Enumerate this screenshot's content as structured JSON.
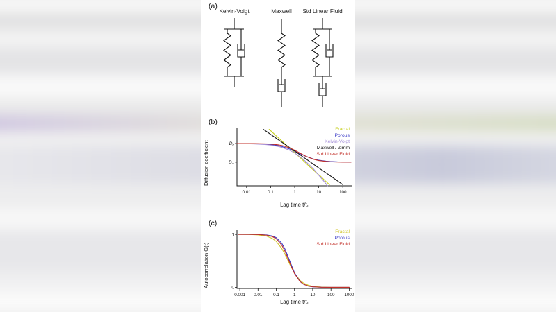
{
  "figure": {
    "panel_a": {
      "label": "(a)",
      "models": [
        "Kelvin-Voigt",
        "Maxwell",
        "Std Linear Fluid"
      ]
    },
    "panel_b": {
      "label": "(b)",
      "xlabel": "Lag time t/t₀",
      "ylabel": "Diffusion coefficient"
    },
    "panel_c": {
      "label": "(c)",
      "xlabel": "Lag time t/t₀",
      "ylabel": "Autocorrelation G(t)"
    }
  },
  "chart_data": [
    {
      "id": "chart-b",
      "type": "line",
      "title": "",
      "xlabel": "Lag time t/t₀",
      "ylabel": "Diffusion coefficient",
      "xscale": "log",
      "yscale": "log",
      "xlim": [
        0.004,
        250
      ],
      "ylim": [
        0.065,
        2.8
      ],
      "grid": false,
      "legend_position": "top-right",
      "xticks": [
        0.01,
        0.1,
        1,
        10,
        100
      ],
      "xtick_labels": [
        "0.01",
        "0.1",
        "1",
        "10",
        "100"
      ],
      "yticks": [
        {
          "value": 1.0,
          "label": "D",
          "sub": "0"
        },
        {
          "value": 0.3,
          "label": "D",
          "sub": "∞"
        }
      ],
      "series": [
        {
          "name": "Fractal",
          "color": "#c6cf1f",
          "points": [
            [
              0.087,
              2.5
            ],
            [
              0.12,
              2.05
            ],
            [
              0.15,
              1.78
            ],
            [
              0.2,
              1.49
            ],
            [
              0.3,
              1.16
            ],
            [
              0.45,
              0.9
            ],
            [
              0.6,
              0.76
            ],
            [
              1,
              0.55
            ],
            [
              1.5,
              0.43
            ],
            [
              2,
              0.36
            ],
            [
              4,
              0.23
            ],
            [
              6,
              0.18
            ],
            [
              8,
              0.15
            ],
            [
              12,
              0.12
            ],
            [
              16,
              0.099
            ],
            [
              22,
              0.081
            ],
            [
              28,
              0.07
            ]
          ]
        },
        {
          "name": "Porous",
          "color": "#3b3bc8",
          "points": [
            [
              0.004,
              0.998
            ],
            [
              0.01,
              0.994
            ],
            [
              0.02,
              0.988
            ],
            [
              0.06,
              0.962
            ],
            [
              0.1,
              0.935
            ],
            [
              0.2,
              0.875
            ],
            [
              0.3,
              0.822
            ],
            [
              0.6,
              0.705
            ],
            [
              1,
              0.607
            ],
            [
              2,
              0.487
            ],
            [
              3,
              0.433
            ],
            [
              6,
              0.369
            ],
            [
              10,
              0.341
            ],
            [
              20,
              0.32
            ],
            [
              30,
              0.313
            ],
            [
              60,
              0.306
            ],
            [
              100,
              0.304
            ],
            [
              220,
              0.302
            ]
          ]
        },
        {
          "name": "Kelvin-Voigt",
          "color": "#a58fd8",
          "points": [
            [
              0.004,
              0.995
            ],
            [
              0.01,
              0.987
            ],
            [
              0.02,
              0.976
            ],
            [
              0.06,
              0.937
            ],
            [
              0.1,
              0.903
            ],
            [
              0.2,
              0.834
            ],
            [
              0.3,
              0.777
            ],
            [
              0.6,
              0.651
            ],
            [
              1,
              0.541
            ],
            [
              2,
              0.387
            ],
            [
              3,
              0.305
            ],
            [
              4,
              0.253
            ],
            [
              6,
              0.195
            ],
            [
              8,
              0.154
            ],
            [
              10,
              0.129
            ],
            [
              12,
              0.112
            ],
            [
              16,
              0.089
            ],
            [
              20,
              0.074
            ],
            [
              23,
              0.065
            ]
          ]
        },
        {
          "name": "Maxwell / Zimm",
          "color": "#111111",
          "points": [
            [
              0.05,
              2.5
            ],
            [
              0.1,
              1.8
            ],
            [
              0.3,
              1.08
            ],
            [
              1,
              0.611
            ],
            [
              3,
              0.365
            ],
            [
              10,
              0.207
            ],
            [
              30,
              0.124
            ],
            [
              100,
              0.07
            ]
          ]
        },
        {
          "name": "Std Linear Fluid",
          "color": "#c22f28",
          "points": [
            [
              0.004,
              0.999
            ],
            [
              0.01,
              0.998
            ],
            [
              0.02,
              0.996
            ],
            [
              0.06,
              0.982
            ],
            [
              0.1,
              0.967
            ],
            [
              0.2,
              0.923
            ],
            [
              0.3,
              0.879
            ],
            [
              0.6,
              0.762
            ],
            [
              1,
              0.65
            ],
            [
              2,
              0.502
            ],
            [
              3,
              0.435
            ],
            [
              6,
              0.362
            ],
            [
              10,
              0.333
            ],
            [
              20,
              0.314
            ],
            [
              30,
              0.308
            ],
            [
              60,
              0.303
            ],
            [
              100,
              0.301
            ],
            [
              220,
              0.3
            ]
          ]
        }
      ]
    },
    {
      "id": "chart-c",
      "type": "line",
      "title": "",
      "xlabel": "Lag time t/t₀",
      "ylabel": "Autocorrelation G(t)",
      "xscale": "log",
      "yscale": "linear",
      "xlim": [
        0.0007,
        1500
      ],
      "ylim": [
        -0.02,
        1.08
      ],
      "grid": false,
      "legend_position": "top-right",
      "xticks": [
        0.001,
        0.01,
        0.1,
        1,
        10,
        100,
        1000
      ],
      "xtick_labels": [
        "0.001",
        "0.01",
        "0.1",
        "1",
        "10",
        "100",
        "1000"
      ],
      "yticks": [
        {
          "value": 1,
          "label": "1"
        },
        {
          "value": 0,
          "label": "0"
        }
      ],
      "series": [
        {
          "name": "Fractal",
          "color": "#cfc325",
          "points": [
            [
              0.0008,
              1.0
            ],
            [
              0.003,
              0.998
            ],
            [
              0.01,
              0.991
            ],
            [
              0.03,
              0.967
            ],
            [
              0.06,
              0.925
            ],
            [
              0.1,
              0.868
            ],
            [
              0.2,
              0.734
            ],
            [
              0.3,
              0.624
            ],
            [
              0.6,
              0.411
            ],
            [
              1,
              0.269
            ],
            [
              2,
              0.134
            ],
            [
              3,
              0.085
            ],
            [
              6,
              0.038
            ],
            [
              10,
              0.02
            ],
            [
              30,
              0.005
            ],
            [
              100,
              0.001
            ],
            [
              1000,
              0.0
            ]
          ]
        },
        {
          "name": "Porous",
          "color": "#3b3bc8",
          "points": [
            [
              0.0008,
              1.0
            ],
            [
              0.003,
              1.0
            ],
            [
              0.01,
              0.998
            ],
            [
              0.03,
              0.989
            ],
            [
              0.06,
              0.972
            ],
            [
              0.1,
              0.939
            ],
            [
              0.2,
              0.835
            ],
            [
              0.3,
              0.725
            ],
            [
              0.6,
              0.465
            ],
            [
              1,
              0.278
            ],
            [
              2,
              0.112
            ],
            [
              3,
              0.062
            ],
            [
              6,
              0.021
            ],
            [
              10,
              0.01
            ],
            [
              30,
              0.002
            ],
            [
              100,
              0.0
            ],
            [
              1000,
              0.0
            ]
          ]
        },
        {
          "name": "Std Linear Fluid",
          "color": "#c22f28",
          "points": [
            [
              0.0008,
              1.0
            ],
            [
              0.003,
              1.0
            ],
            [
              0.01,
              0.997
            ],
            [
              0.03,
              0.985
            ],
            [
              0.06,
              0.96
            ],
            [
              0.1,
              0.918
            ],
            [
              0.2,
              0.798
            ],
            [
              0.3,
              0.683
            ],
            [
              0.6,
              0.432
            ],
            [
              1,
              0.261
            ],
            [
              2,
              0.111
            ],
            [
              3,
              0.064
            ],
            [
              6,
              0.023
            ],
            [
              10,
              0.011
            ],
            [
              30,
              0.002
            ],
            [
              100,
              0.0
            ],
            [
              1000,
              0.0
            ]
          ]
        }
      ]
    }
  ]
}
